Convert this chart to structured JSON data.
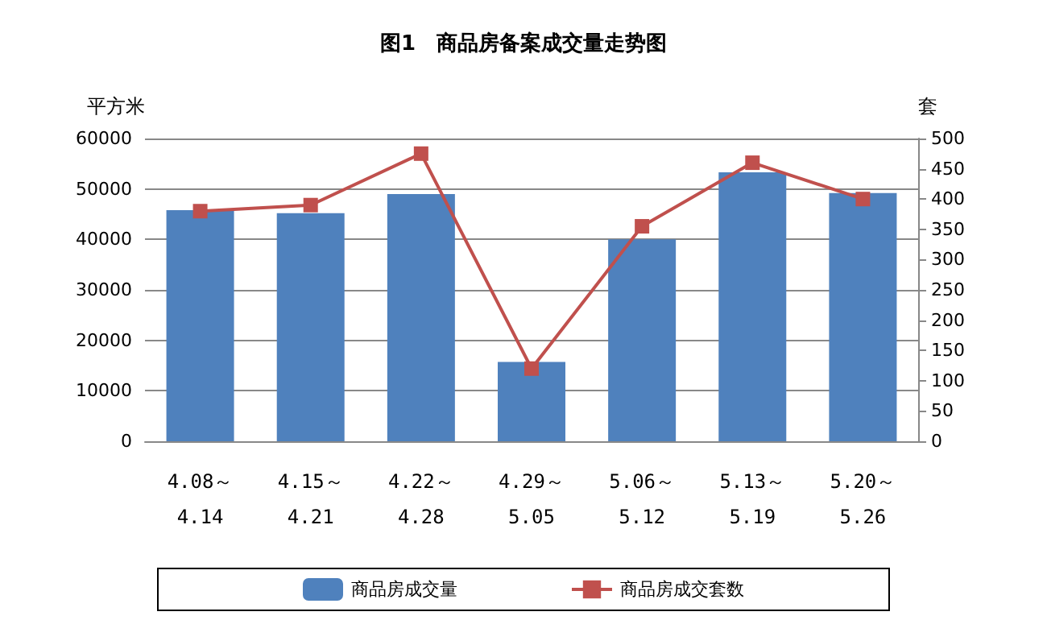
{
  "chart_data": {
    "type": "bar",
    "title": "图1　商品房备案成交量走势图",
    "ylabel": "平方米",
    "y2label": "套",
    "categories": [
      "4.08～\n4.14",
      "4.15～\n4.21",
      "4.22～\n4.28",
      "4.29～\n5.05",
      "5.06～\n5.12",
      "5.13～\n5.19",
      "5.20～\n5.26"
    ],
    "series": [
      {
        "name": "商品房成交量",
        "color": "#4f81bd",
        "values": [
          45800,
          45200,
          49000,
          15700,
          40000,
          53300,
          49200
        ]
      },
      {
        "name": "商品房成交套数",
        "type": "line",
        "axis": "y2",
        "color": "#c0504d",
        "marker": "square",
        "values": [
          380,
          390,
          475,
          120,
          355,
          460,
          400
        ]
      }
    ],
    "ylim": [
      0,
      60000
    ],
    "yticks": [
      0,
      10000,
      20000,
      30000,
      40000,
      50000,
      60000
    ],
    "y2lim": [
      0,
      500
    ],
    "y2ticks": [
      0,
      50,
      100,
      150,
      200,
      250,
      300,
      350,
      400,
      450,
      500
    ],
    "grid": "y",
    "legend": "bottom"
  }
}
